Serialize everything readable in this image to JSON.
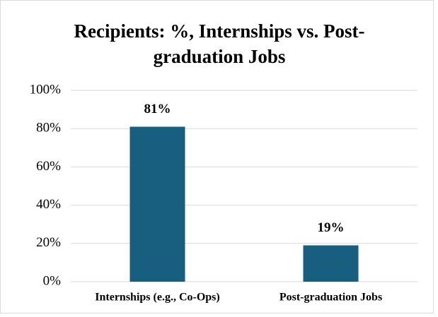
{
  "chart_data": {
    "type": "bar",
    "title": "Recipients: %, Internships vs. Post-graduation Jobs",
    "categories": [
      "Internships (e.g., Co-Ops)",
      "Post-graduation Jobs"
    ],
    "values": [
      81,
      19
    ],
    "value_labels": [
      "81%",
      "19%"
    ],
    "color": "#175e7f",
    "ylim": [
      0,
      100
    ],
    "yticks": [
      {
        "value": 0,
        "label": "0%"
      },
      {
        "value": 20,
        "label": "20%"
      },
      {
        "value": 40,
        "label": "40%"
      },
      {
        "value": 60,
        "label": "60%"
      },
      {
        "value": 80,
        "label": "80%"
      },
      {
        "value": 100,
        "label": "100%"
      }
    ],
    "grid": true
  }
}
